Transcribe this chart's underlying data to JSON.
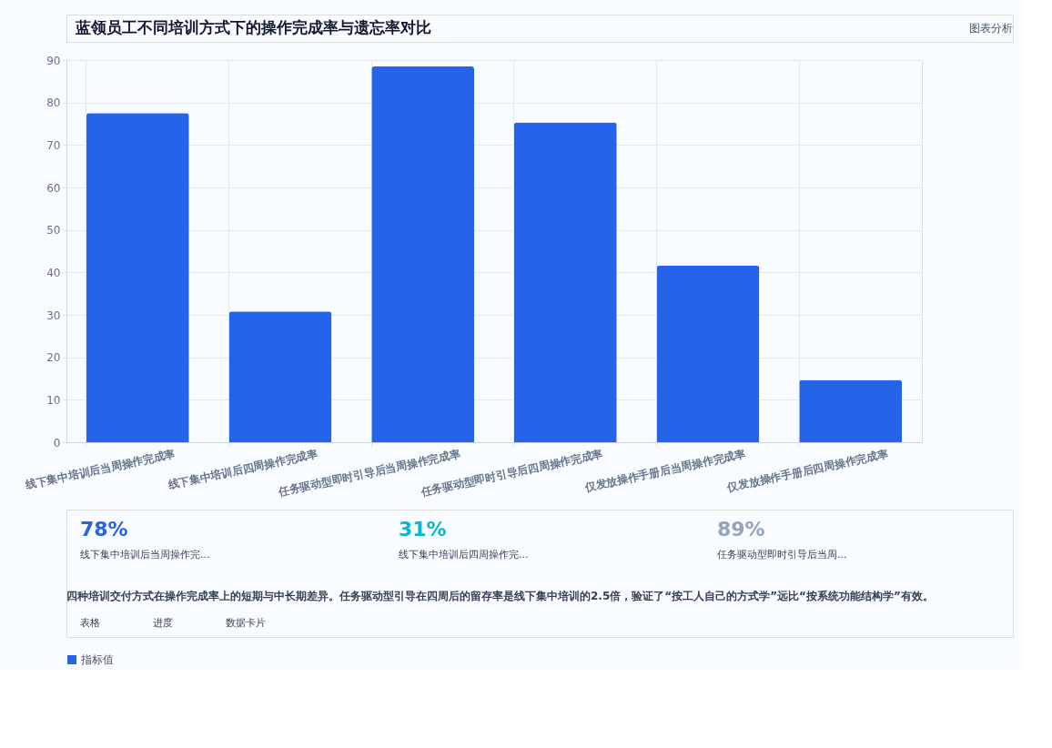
{
  "chart_data": {
    "type": "bar",
    "title": "蓝领员工不同培训方式下的操作完成率与遗忘率对比",
    "categories": [
      "线下集中培训后当周操作完成率",
      "线下集中培训后四周操作完成率",
      "任务驱动型即时引导后当周操作完成率",
      "任务驱动型即时引导后四周操作完成率",
      "仅发放操作手册后当周操作完成率",
      "仅发放操作手册后四周操作完成率"
    ],
    "series": [
      {
        "name": "指标值",
        "color": "#2563eb",
        "values": [
          77.5,
          30.8,
          88.5,
          75.3,
          41.6,
          14.7
        ]
      }
    ],
    "ylim": [
      0,
      90
    ],
    "yticks": [
      0,
      10,
      20,
      30,
      40,
      50,
      60,
      70,
      80,
      90
    ],
    "grid": true,
    "legend": "bottom",
    "annotations": [
      "图表分析",
      "78%",
      "线下集中培训后当周操作完...",
      "31%",
      "线下集中培训后四周操作完...",
      "89%",
      "任务驱动型即时引导后当周...",
      "四种培训交付方式在操作完成率上的短期与中长期差异。任务驱动型引导在四周后的留存率是线下集中培训的2.5倍，验证了“按工人自己的方式学”远比“按系统功能结构学”有效。",
      "表格",
      "进度",
      "数据卡片"
    ]
  }
}
